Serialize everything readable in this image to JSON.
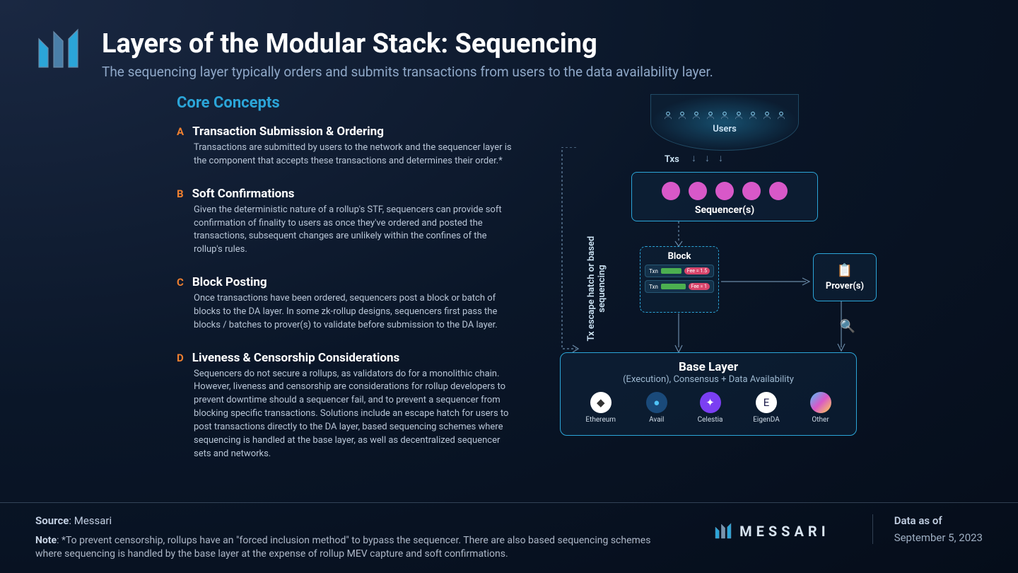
{
  "header": {
    "title": "Layers of the Modular Stack: Sequencing",
    "subtitle": "The sequencing layer typically orders and submits transactions from users to the data availability layer."
  },
  "section_title": "Core Concepts",
  "concepts": [
    {
      "letter": "A",
      "title": "Transaction Submission & Ordering",
      "body": "Transactions are submitted by users to the network and the sequencer layer is the component that accepts these transactions and determines their order.*"
    },
    {
      "letter": "B",
      "title": "Soft Confirmations",
      "body": "Given the deterministic nature of a rollup's STF, sequencers can provide soft confirmation of finality to users as once they've ordered and posted the transactions, subsequent changes are unlikely within the confines of the rollup's rules."
    },
    {
      "letter": "C",
      "title": "Block Posting",
      "body": "Once transactions have been ordered, sequencers post a block or batch of blocks to the DA layer. In some zk-rollup designs, sequencers first pass the blocks / batches to prover(s) to validate before submission to the DA layer."
    },
    {
      "letter": "D",
      "title": "Liveness & Censorship Considerations",
      "body": "Sequencers do not secure a rollups, as validators do for a monolithic chain. However, liveness and censorship are considerations for rollup developers to prevent downtime should a sequencer fail, and to prevent a sequencer from blocking specific transactions. Solutions include an escape hatch for users to post transactions directly to the DA layer, based sequencing schemes where sequencing is handled at the base layer, as well as decentralized sequencer sets and networks."
    }
  ],
  "diagram": {
    "users_label": "Users",
    "txs_label": "Txs",
    "sequencer_label": "Sequencer(s)",
    "sequencer_dot_color": "#d858c8",
    "sequencer_dot_count": 5,
    "block_title": "Block",
    "txns": [
      {
        "label": "Txn",
        "fee": "Fee = 1.5"
      },
      {
        "label": "Txn",
        "fee": "Fee = 1"
      }
    ],
    "prover_label": "Prover(s)",
    "escape_label": "Tx escape hatch or based sequencing",
    "base_title": "Base Layer",
    "base_sub": "(Execution), Consensus + Data Availability",
    "base_items": [
      {
        "name": "Ethereum",
        "bg": "#ffffff",
        "symbol": "◆",
        "fg": "#333333"
      },
      {
        "name": "Avail",
        "bg": "#1a4a7a",
        "symbol": "●",
        "fg": "#4fc3f7"
      },
      {
        "name": "Celestia",
        "bg": "#7b3ff2",
        "symbol": "✦",
        "fg": "#ffffff"
      },
      {
        "name": "EigenDA",
        "bg": "#ffffff",
        "symbol": "E",
        "fg": "#1a1a4a"
      },
      {
        "name": "Other",
        "bg": "linear-gradient(135deg,#4fc3f7,#d858c8,#ffd54f)",
        "symbol": "",
        "fg": "#ffffff"
      }
    ]
  },
  "colors": {
    "accent": "#2ba5d8",
    "letter": "#f08030",
    "seq_dot": "#d858c8",
    "txn_bar": "#4caf50",
    "txn_fee": "#d8456b"
  },
  "footer": {
    "source_label": "Source",
    "source_value": "Messari",
    "note_label": "Note",
    "note_value": "*To prevent censorship, rollups have an \"forced inclusion method\" to bypass the sequencer. There are also based sequencing schemes where sequencing is handled by the base layer at the expense of rollup MEV capture and soft confirmations.",
    "brand": "MESSARI",
    "data_as_of_label": "Data as of",
    "data_as_of_value": "September 5, 2023"
  }
}
